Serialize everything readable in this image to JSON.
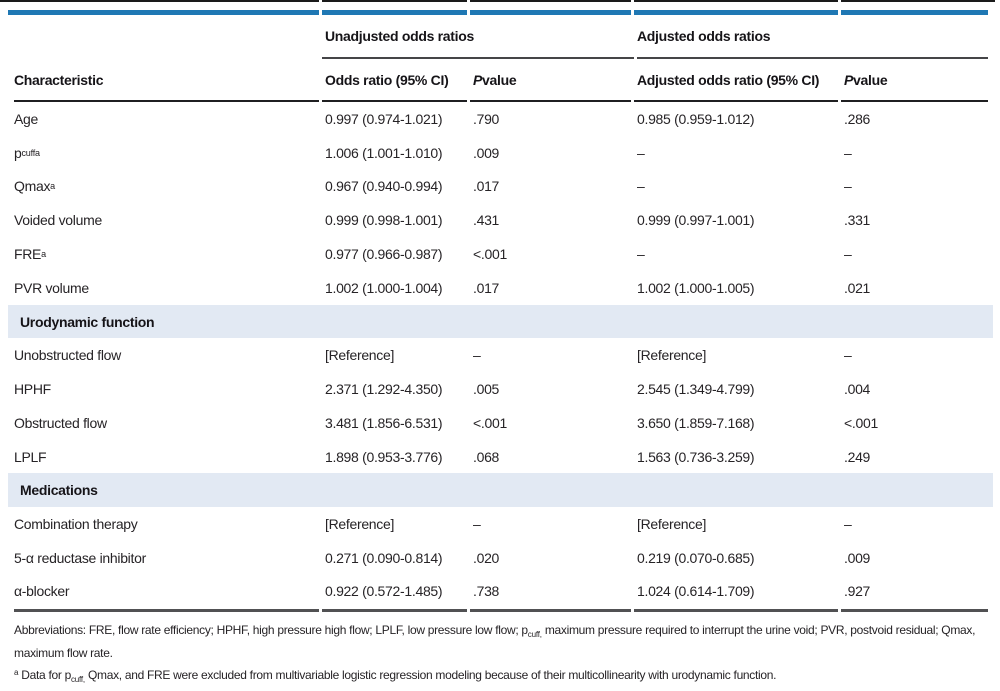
{
  "colors": {
    "top_bar_blue": "#1f78b4",
    "section_band_blue": "#e2e9f3"
  },
  "table": {
    "spanners": {
      "unadjusted": "Unadjusted odds ratios",
      "adjusted": "Adjusted odds ratios"
    },
    "columns": {
      "characteristic": "Characteristic",
      "or": "Odds ratio (95% CI)",
      "aor": "Adjusted odds ratio (95% CI)",
      "p_italic": "P",
      "p_rest": " value"
    },
    "sections": {
      "urodynamic": "Urodynamic function",
      "medications": "Medications"
    },
    "rows": [
      {
        "label": "Age",
        "or": "0.997 (0.974-1.021)",
        "p": ".790",
        "aor": "0.985 (0.959-1.012)",
        "ap": ".286"
      },
      {
        "label": "p",
        "label_sub": "cuff",
        "label_sup": "a",
        "or": "1.006 (1.001-1.010)",
        "p": ".009",
        "aor": "–",
        "ap": "–"
      },
      {
        "label": "Qmax",
        "label_sup": "a",
        "or": "0.967 (0.940-0.994)",
        "p": ".017",
        "aor": "–",
        "ap": "–"
      },
      {
        "label": "Voided volume",
        "or": "0.999 (0.998-1.001)",
        "p": ".431",
        "aor": "0.999 (0.997-1.001)",
        "ap": ".331"
      },
      {
        "label": "FRE",
        "label_sup": "a",
        "or": "0.977 (0.966-0.987)",
        "p": "<.001",
        "aor": "–",
        "ap": "–"
      },
      {
        "label": "PVR volume",
        "or": "1.002 (1.000-1.004)",
        "p": ".017",
        "aor": "1.002 (1.000-1.005)",
        "ap": ".021"
      },
      {
        "label": "Unobstructed flow",
        "or": "[Reference]",
        "p": "–",
        "aor": "[Reference]",
        "ap": "–"
      },
      {
        "label": "HPHF",
        "or": "2.371 (1.292-4.350)",
        "p": ".005",
        "aor": "2.545 (1.349-4.799)",
        "ap": ".004"
      },
      {
        "label": "Obstructed flow",
        "or": "3.481 (1.856-6.531)",
        "p": "<.001",
        "aor": "3.650 (1.859-7.168)",
        "ap": "<.001"
      },
      {
        "label": "LPLF",
        "or": "1.898 (0.953-3.776)",
        "p": ".068",
        "aor": "1.563 (0.736-3.259)",
        "ap": ".249"
      },
      {
        "label": "Combination therapy",
        "or": "[Reference]",
        "p": "–",
        "aor": "[Reference]",
        "ap": "–"
      },
      {
        "label": "5-α reductase inhibitor",
        "or": "0.271 (0.090-0.814)",
        "p": ".020",
        "aor": "0.219 (0.070-0.685)",
        "ap": ".009"
      },
      {
        "label": "α-blocker",
        "or": "0.922 (0.572-1.485)",
        "p": ".738",
        "aor": "1.024 (0.614-1.709)",
        "ap": ".927"
      }
    ]
  },
  "footnotes": {
    "abbrev_pre": "Abbreviations: FRE, flow rate efficiency; HPHF, high pressure high flow; LPLF, low pressure low flow; p",
    "abbrev_sub": "cuff,",
    "abbrev_post": " maximum pressure required to interrupt the urine void; PVR, postvoid residual; Qmax, maximum flow rate.",
    "note_sup": "a",
    "note_pre": " Data for p",
    "note_sub": "cuff,",
    "note_post": " Qmax, and FRE were excluded from multivariable logistic regression modeling because of their multicollinearity with urodynamic function."
  }
}
